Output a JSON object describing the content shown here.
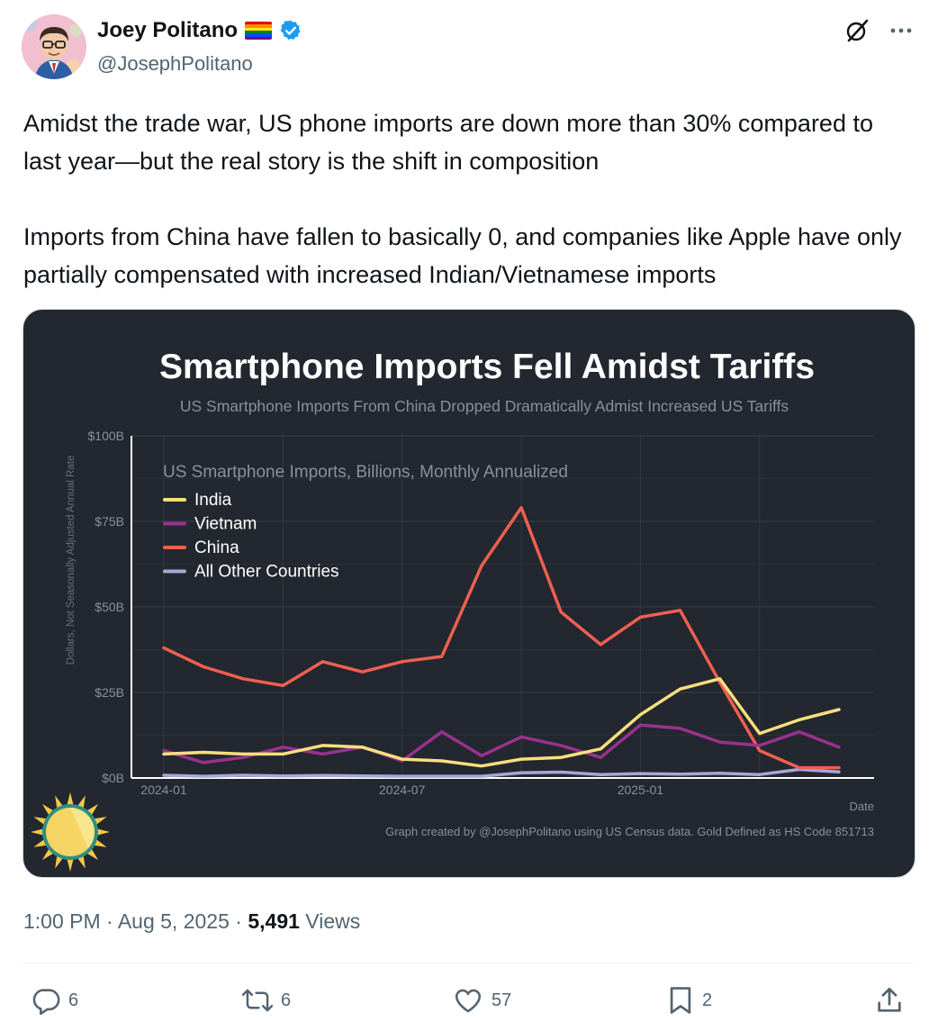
{
  "author": {
    "name": "Joey Politano",
    "handle": "@JosephPolitano",
    "flag_colors": [
      "#e40303",
      "#ff8c00",
      "#ffed00",
      "#008026",
      "#004dff",
      "#750787"
    ],
    "verified_color": "#1d9bf0"
  },
  "header_icons": [
    "grok-icon",
    "more-icon"
  ],
  "tweet": {
    "paragraph1": "Amidst the trade war, US phone imports are down more than 30% compared to last year—but the real story is the shift in composition",
    "paragraph2": "Imports from China have fallen to basically 0, and companies like Apple have only partially compensated with increased Indian/Vietnamese imports"
  },
  "chart_data": {
    "type": "line",
    "title": "Smartphone Imports Fell Amidst Tariffs",
    "subtitle": "US Smartphone Imports From China Dropped Dramatically Admist Increased US Tariffs",
    "inner_title": "US Smartphone Imports, Billions, Monthly Annualized",
    "ylabel": "Dollars, Not Seasonally Adjusted Annual Rate",
    "xlabel": "Date",
    "caption": "Graph created by @JosephPolitano using US Census data. Gold Defined as HS Code 851713",
    "x": [
      "2024-01",
      "2024-02",
      "2024-03",
      "2024-04",
      "2024-05",
      "2024-06",
      "2024-07",
      "2024-08",
      "2024-09",
      "2024-10",
      "2024-11",
      "2024-12",
      "2025-01",
      "2025-02",
      "2025-03",
      "2025-04",
      "2025-05",
      "2025-06"
    ],
    "x_tick_labels": [
      "2024-01",
      "2024-07",
      "2025-01"
    ],
    "y_tick_labels": [
      "$0B",
      "$25B",
      "$50B",
      "$75B",
      "$100B"
    ],
    "ylim": [
      0,
      100
    ],
    "grid": true,
    "legend_position": "top-left",
    "series": [
      {
        "name": "India",
        "color": "#f7e07f",
        "values": [
          7,
          7.5,
          7,
          7,
          9.5,
          9,
          5.5,
          5,
          3.5,
          5.5,
          6,
          8.5,
          18.5,
          26,
          29,
          13,
          17,
          20
        ]
      },
      {
        "name": "Vietnam",
        "color": "#99328f",
        "values": [
          8,
          4.5,
          6,
          9,
          7,
          9,
          5,
          13.5,
          6.5,
          12,
          9.5,
          6,
          15.5,
          14.5,
          10.5,
          9.5,
          13.5,
          9
        ]
      },
      {
        "name": "China",
        "color": "#ee6050",
        "values": [
          38,
          32.5,
          29,
          27,
          34,
          31,
          34,
          35.5,
          62,
          79,
          48.5,
          39,
          47,
          49,
          28,
          8,
          3,
          3
        ]
      },
      {
        "name": "All Other Countries",
        "color": "#a8a6d6",
        "values": [
          0.8,
          0.5,
          0.8,
          0.6,
          0.7,
          0.6,
          0.5,
          0.5,
          0.5,
          1.5,
          1.7,
          1,
          1.3,
          1.1,
          1.4,
          1,
          2.5,
          1.8
        ]
      }
    ]
  },
  "meta": {
    "time": "1:00 PM",
    "date": "Aug 5, 2025",
    "views_count": "5,491",
    "views_label": "Views"
  },
  "actions": {
    "replies": "6",
    "reposts": "6",
    "likes": "57",
    "bookmarks": "2"
  }
}
